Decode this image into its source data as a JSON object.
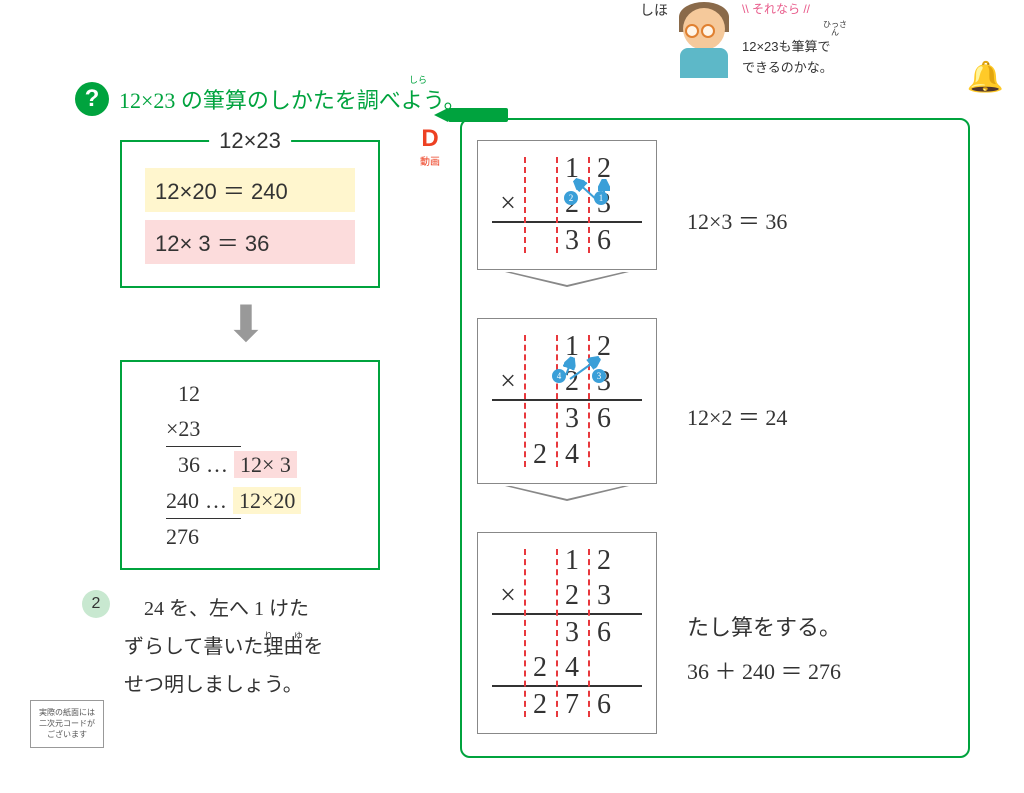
{
  "colors": {
    "green": "#00a33e",
    "pink": "#e85a8a",
    "red": "#ed4123",
    "blue": "#3a9fd8",
    "dashRed": "#e8383d",
    "yellowBg": "#fff6ce",
    "pinkBg": "#fcdcdc",
    "lightGreen": "#c8e8d0"
  },
  "speech": {
    "name": "しほ",
    "sorenara": "\\\\ それなら //",
    "ruby": "ひっさん",
    "line1": "12×23も筆算で",
    "line2": "できるのかな。"
  },
  "question": {
    "badge": "?",
    "ruby": "しら",
    "text": "12×23 の筆算のしかたを調べよう。"
  },
  "dvideo": {
    "d": "D",
    "label": "動画"
  },
  "box1": {
    "title": "12×23",
    "eq1": "12×20 ＝ 240",
    "eq2": "12×   3 ＝   36"
  },
  "box2": {
    "r1": "   12",
    "r2": "×23",
    "r3_num": "  36",
    "r3_annot": "12×  3",
    "r4_num": "240",
    "r4_annot": "12×20",
    "r5": "276",
    "dots": "…"
  },
  "step2text": {
    "num": "2",
    "line1": "　24 を、左へ 1 けた",
    "line2": "ずらして書いた理由を",
    "line2_ruby": "り　ゆう",
    "line3": "せつ明しましょう。"
  },
  "qr": {
    "l1": "実際の紙面には",
    "l2": "二次元コードが",
    "l3": "ございます"
  },
  "steps": {
    "badges": {
      "b1": "1",
      "b2": "2",
      "b3": "3",
      "b4": "4"
    },
    "s1": {
      "r": [
        [
          "",
          "",
          "1",
          "2"
        ],
        [
          "×",
          "",
          "2",
          "3"
        ],
        [
          "",
          "",
          "3",
          "6"
        ]
      ],
      "side": "12×3 ＝ 36"
    },
    "s2": {
      "r": [
        [
          "",
          "",
          "1",
          "2"
        ],
        [
          "×",
          "",
          "2",
          "3"
        ],
        [
          "",
          "",
          "3",
          "6"
        ],
        [
          "",
          "2",
          "4",
          ""
        ]
      ],
      "side": "12×2 ＝ 24"
    },
    "s3": {
      "r": [
        [
          "",
          "",
          "1",
          "2"
        ],
        [
          "×",
          "",
          "2",
          "3"
        ],
        [
          "",
          "",
          "3",
          "6"
        ],
        [
          "",
          "2",
          "4",
          ""
        ],
        [
          "",
          "2",
          "7",
          "6"
        ]
      ],
      "sideA": "たし算をする。",
      "sideB": "36 ＋ 240 ＝ 276"
    }
  }
}
